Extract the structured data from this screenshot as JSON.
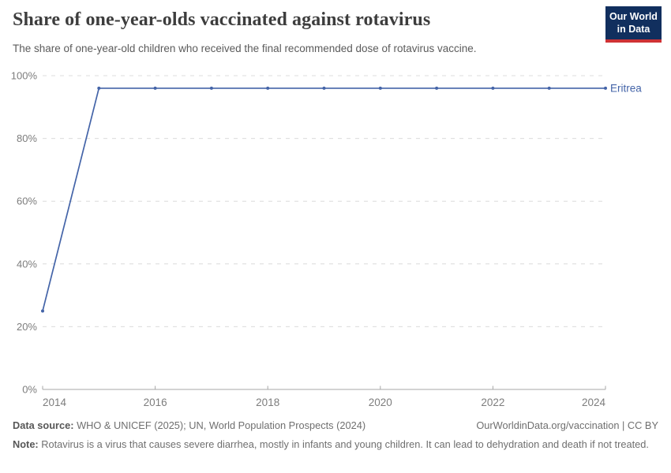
{
  "header": {
    "title": "Share of one-year-olds vaccinated against rotavirus",
    "subtitle": "The share of one-year-old children who received the final recommended dose of rotavirus vaccine.",
    "logo": {
      "line1": "Our World",
      "line2": "in Data"
    }
  },
  "chart_data": {
    "type": "line",
    "title": "Share of one-year-olds vaccinated against rotavirus",
    "xlabel": "",
    "ylabel": "",
    "xlim": [
      2014,
      2024
    ],
    "ylim": [
      0,
      100
    ],
    "grid": true,
    "legend_position": "right-of-line-end",
    "x": [
      2014,
      2015,
      2016,
      2017,
      2018,
      2019,
      2020,
      2021,
      2022,
      2023,
      2024
    ],
    "series": [
      {
        "name": "Eritrea",
        "color": "#4464a8",
        "values": [
          25,
          96,
          96,
          96,
          96,
          96,
          96,
          96,
          96,
          96,
          96
        ]
      }
    ],
    "y_ticks": [
      {
        "value": 0,
        "label": "0%"
      },
      {
        "value": 20,
        "label": "20%"
      },
      {
        "value": 40,
        "label": "40%"
      },
      {
        "value": 60,
        "label": "60%"
      },
      {
        "value": 80,
        "label": "80%"
      },
      {
        "value": 100,
        "label": "100%"
      }
    ],
    "x_ticks": [
      {
        "value": 2014,
        "label": "2014"
      },
      {
        "value": 2016,
        "label": "2016"
      },
      {
        "value": 2018,
        "label": "2018"
      },
      {
        "value": 2020,
        "label": "2020"
      },
      {
        "value": 2022,
        "label": "2022"
      },
      {
        "value": 2024,
        "label": "2024"
      }
    ],
    "style": {
      "grid_color": "#dcdcdc",
      "axis_color": "#a7a7a7",
      "tick_label_color": "#7d7d7d"
    }
  },
  "footer": {
    "source_label": "Data source:",
    "source_text": " WHO & UNICEF (2025); UN, World Population Prospects (2024)",
    "license_text": "OurWorldinData.org/vaccination | CC BY",
    "note_label": "Note:",
    "note_text": " Rotavirus is a virus that causes severe diarrhea, mostly in infants and young children. It can lead to dehydration and death if not treated."
  }
}
